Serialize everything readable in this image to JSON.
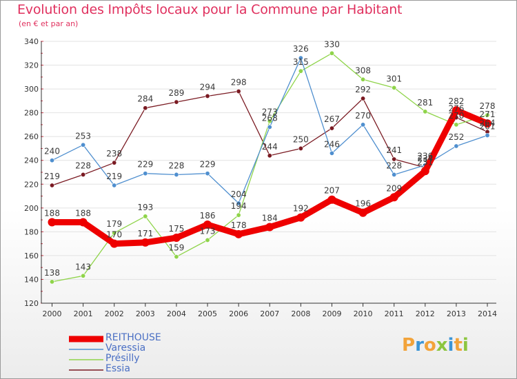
{
  "header": {
    "title": "Evolution des Impôts locaux pour la Commune par Habitant",
    "subtitle": "(en € et par an)"
  },
  "brand": {
    "letters": [
      "P",
      "r",
      "o",
      "x",
      "i",
      "t",
      "i"
    ],
    "colors": [
      "#f2a33a",
      "#3b95d6",
      "#f2a33a",
      "#8cc63f",
      "#3b95d6",
      "#f2a33a",
      "#8cc63f"
    ]
  },
  "chart_data": {
    "type": "line",
    "title": "Evolution des Impôts locaux pour la Commune par Habitant",
    "subtitle": "(en € et par an)",
    "xlabel": "",
    "ylabel": "",
    "x": [
      "2000",
      "2001",
      "2002",
      "2003",
      "2004",
      "2005",
      "2006",
      "2007",
      "2008",
      "2009",
      "2010",
      "2011",
      "2012",
      "2013",
      "2014"
    ],
    "ylim": [
      120,
      340
    ],
    "yticks": [
      120,
      140,
      160,
      180,
      200,
      220,
      240,
      260,
      280,
      300,
      320,
      340
    ],
    "grid": "horizontal",
    "legend_position": "bottom-left",
    "series": [
      {
        "name": "REITHOUSE",
        "color": "#ee0000",
        "values": [
          188,
          188,
          170,
          171,
          175,
          186,
          178,
          184,
          192,
          207,
          196,
          209,
          231,
          282,
          271
        ],
        "labels": [
          "188",
          "188",
          "170",
          "171",
          "175",
          "186",
          "178",
          "184",
          "192",
          "207",
          "196",
          "209",
          "231",
          "282",
          "271"
        ]
      },
      {
        "name": "Varessia",
        "color": "#4f8fcf",
        "values": [
          240,
          253,
          219,
          229,
          228,
          229,
          204,
          268,
          326,
          246,
          270,
          228,
          236,
          252,
          261
        ],
        "labels": [
          "240",
          "253",
          "219",
          "229",
          "228",
          "229",
          "204",
          "268",
          "326",
          "246",
          "270",
          "228",
          "236",
          "252",
          "261"
        ]
      },
      {
        "name": "Présilly",
        "color": "#8fd44a",
        "values": [
          138,
          143,
          179,
          193,
          159,
          173,
          194,
          273,
          315,
          330,
          308,
          301,
          281,
          270,
          278
        ],
        "labels": [
          "138",
          "143",
          "179",
          "193",
          "159",
          "173",
          "194",
          "273",
          "315",
          "330",
          "308",
          "301",
          "281",
          "270",
          "278"
        ]
      },
      {
        "name": "Essia",
        "color": "#7a1a22",
        "values": [
          219,
          228,
          238,
          284,
          289,
          294,
          298,
          244,
          250,
          267,
          292,
          241,
          234,
          276,
          264
        ],
        "labels": [
          "219",
          "228",
          "238",
          "284",
          "289",
          "294",
          "298",
          "244",
          "250",
          "267",
          "292",
          "241",
          "234",
          "276",
          "264"
        ]
      }
    ]
  }
}
